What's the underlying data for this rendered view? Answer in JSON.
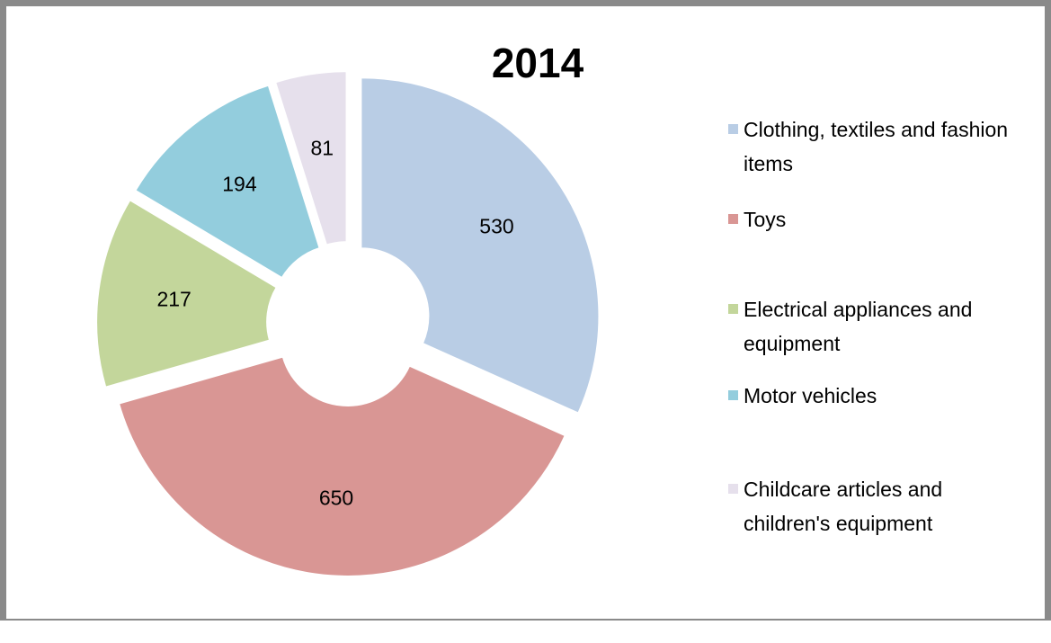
{
  "chart_data": {
    "type": "doughnut",
    "title": "2014",
    "categories": [
      "Clothing, textiles and fashion items",
      "Toys",
      "Electrical appliances and equipment",
      "Motor vehicles",
      "Childcare articles and children's equipment"
    ],
    "values": [
      530,
      650,
      217,
      194,
      81
    ],
    "colors": [
      "#b9cde5",
      "#d99694",
      "#c3d69b",
      "#93cddd",
      "#e6e0ec"
    ],
    "legend": "right"
  }
}
